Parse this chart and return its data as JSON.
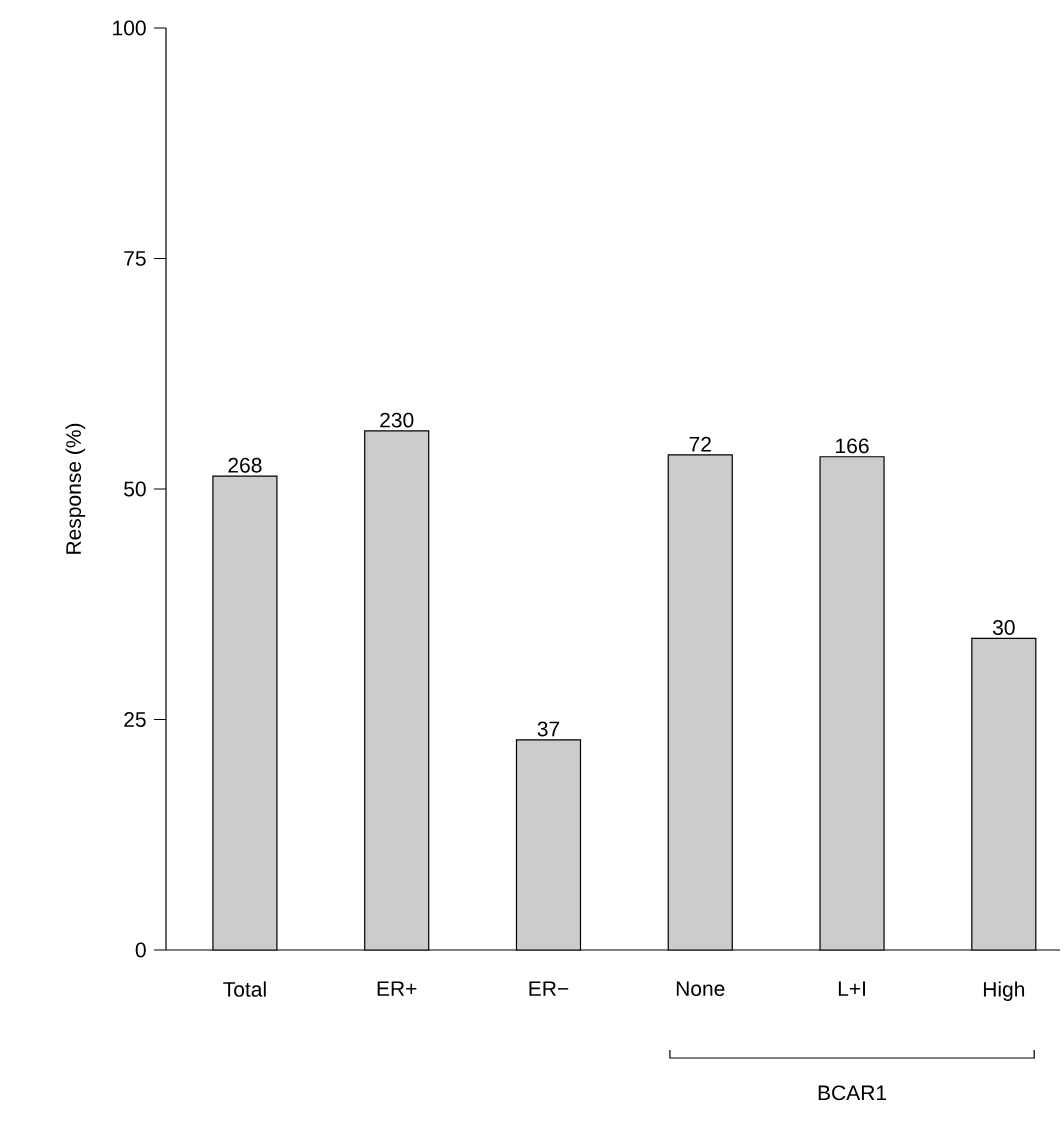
{
  "chart_data": {
    "type": "bar",
    "ylabel": "Response (%)",
    "categories": [
      "Total",
      "ER+",
      "ER−",
      "None",
      "L+I",
      "High"
    ],
    "values": [
      51.4,
      56.3,
      22.8,
      53.7,
      53.5,
      33.8
    ],
    "color": "#cccccc",
    "ylim": [
      0,
      100
    ],
    "yticks": [
      0,
      25,
      50,
      75,
      100
    ],
    "annotations": [
      {
        "text": "268",
        "x": "Total",
        "y": 51.4
      },
      {
        "text": "230",
        "x": "ER+",
        "y": 56.3
      },
      {
        "text": "37",
        "x": "ER−",
        "y": 22.8
      },
      {
        "text": "72",
        "x": "None",
        "y": 53.7
      },
      {
        "text": "166",
        "x": "L+I",
        "y": 53.5
      },
      {
        "text": "30",
        "x": "High",
        "y": 33.8
      },
      "BCAR1"
    ],
    "grid": false
  }
}
